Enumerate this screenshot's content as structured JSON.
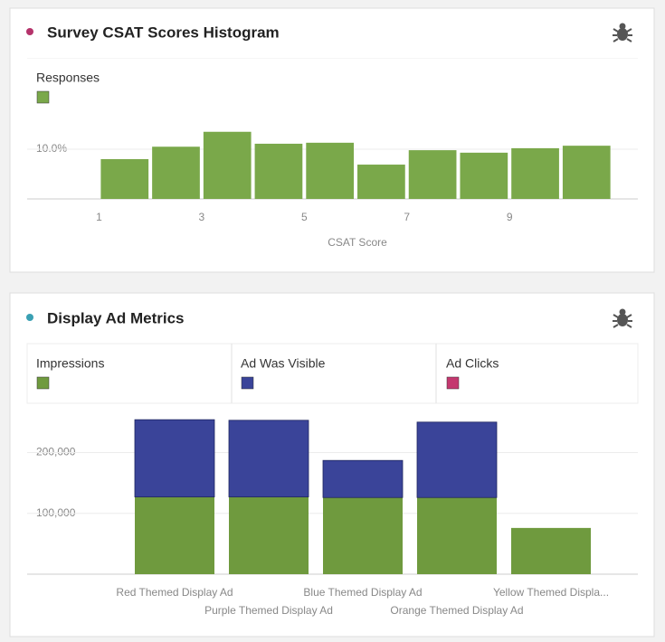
{
  "chart_data": [
    {
      "type": "histogram",
      "title": "Survey CSAT Scores Histogram",
      "x_label": "CSAT Score",
      "bins": [
        1,
        2,
        3,
        4,
        5,
        6,
        7,
        8,
        9,
        10,
        11
      ],
      "series": [
        {
          "name": "Responses",
          "color": "#7aa84a",
          "values": [
            8.0,
            10.5,
            13.5,
            11.1,
            11.3,
            6.9,
            9.8,
            9.3,
            10.2,
            10.7
          ]
        }
      ],
      "xlim": [
        -0.4,
        11.5
      ],
      "xticks": [
        1,
        3,
        5,
        7,
        9
      ],
      "ylim": [
        0,
        28
      ],
      "yticks": [
        {
          "value": 10,
          "label": "10.0%"
        }
      ],
      "grid": true
    },
    {
      "type": "bar",
      "stacked": true,
      "title": "Display Ad Metrics",
      "categories": [
        "Red Themed Display Ad",
        "Purple Themed Display Ad",
        "Blue Themed Display Ad",
        "Orange Themed Display Ad",
        "Yellow Themed Displa..."
      ],
      "series": [
        {
          "name": "Impressions",
          "color": "#6f9a3e",
          "values": [
            127000,
            127000,
            126000,
            126000,
            76000
          ]
        },
        {
          "name": "Ad Was Visible",
          "color": "#3a4499",
          "values": [
            127000,
            126000,
            61000,
            124000,
            0
          ]
        },
        {
          "name": "Ad Clicks",
          "color": "#c4386f",
          "values": [
            0,
            0,
            0,
            0,
            0
          ]
        }
      ],
      "ylim": [
        0,
        275000
      ],
      "yticks": [
        {
          "value": 100000,
          "label": "100,000"
        },
        {
          "value": 200000,
          "label": "200,000"
        }
      ],
      "grid": true
    }
  ]
}
